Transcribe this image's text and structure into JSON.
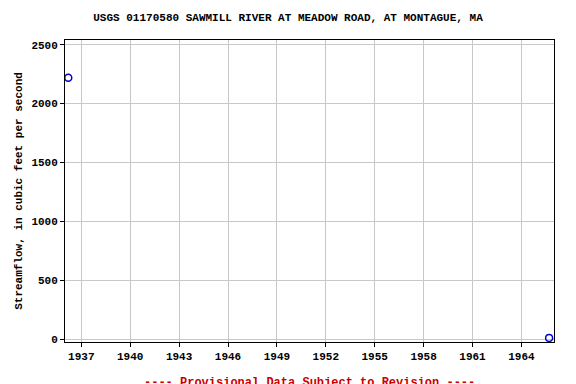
{
  "chart_data": {
    "type": "scatter",
    "title": "USGS 01170580 SAWMILL RIVER AT MEADOW ROAD, AT MONTAGUE, MA",
    "y_label": "Streamflow, in cubic feet per second",
    "annotations": [
      "---- Provisional Data Subject to Revision ----"
    ],
    "x": [
      1936.2,
      1965.7
    ],
    "values": [
      2220,
      10
    ],
    "color": "#0000cc",
    "marker": "open circle",
    "xlim": [
      1936.0,
      1966.0
    ],
    "xticks": [
      1937,
      1940,
      1943,
      1946,
      1949,
      1952,
      1955,
      1958,
      1961,
      1964
    ],
    "ylim": [
      -25,
      2540
    ],
    "yticks": [
      0,
      500,
      1000,
      1500,
      2000,
      2500
    ],
    "grid": true
  }
}
